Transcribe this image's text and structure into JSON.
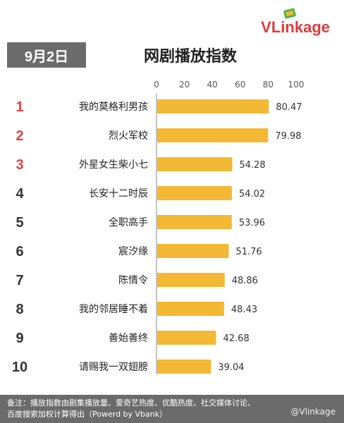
{
  "brand": {
    "name": "VLinkage",
    "v": "V",
    "rest": "Linkage"
  },
  "header": {
    "date": "9月2日",
    "title": "网剧播放指数"
  },
  "chart_data": {
    "type": "bar",
    "orientation": "horizontal",
    "title": "网剧播放指数",
    "xlim": [
      0,
      100
    ],
    "xticks": [
      0,
      20,
      40,
      60,
      80,
      100
    ],
    "ranks": [
      "1",
      "2",
      "3",
      "4",
      "5",
      "6",
      "7",
      "8",
      "9",
      "10"
    ],
    "categories": [
      "我的莫格利男孩",
      "烈火军校",
      "外星女生柴小七",
      "长安十二时辰",
      "全职高手",
      "宸汐缘",
      "陈情令",
      "我的邻居睡不着",
      "善始善终",
      "请赐我一双翅膀"
    ],
    "values": [
      80.47,
      79.98,
      54.28,
      54.02,
      53.96,
      51.76,
      48.86,
      48.43,
      42.68,
      39.04
    ],
    "value_labels": [
      "80.47",
      "79.98",
      "54.28",
      "54.02",
      "53.96",
      "51.76",
      "48.86",
      "48.43",
      "42.68",
      "39.04"
    ],
    "colors": {
      "bar": "#f3b834",
      "rank_top": "#e8413f",
      "rank_rest": "#333333",
      "axis": "#888888"
    }
  },
  "footer": {
    "note_line1": "备注：播放指数由剧集播放量、爱奇艺热度、优酷热度、社交媒体讨论、",
    "note_line2": "百度搜索加权计算得出（Powerd by Vbank）",
    "watermark": "@Vlinkage"
  }
}
